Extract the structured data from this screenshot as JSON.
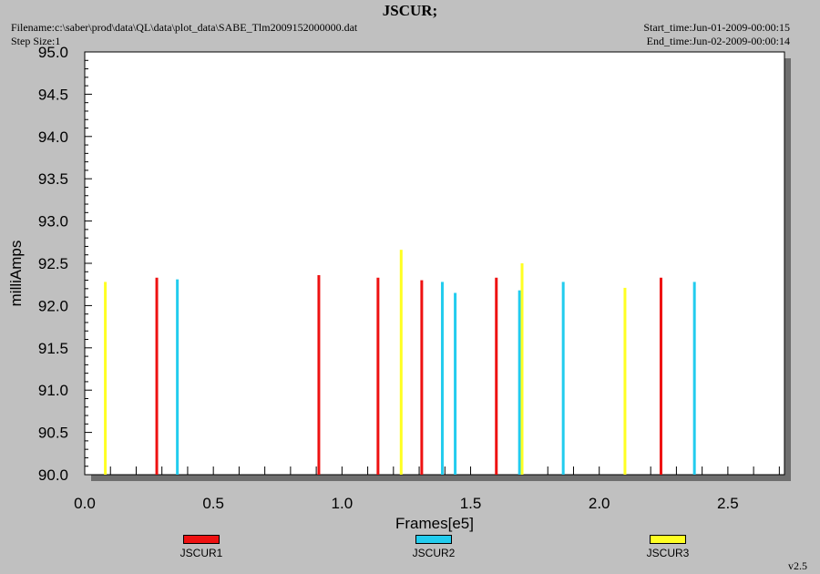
{
  "header": {
    "title": "JSCUR;",
    "filename": "Filename:c:\\saber\\prod\\data\\QL\\data\\plot_data\\SABE_Tlm2009152000000.dat",
    "step_size": "Step Size:1",
    "start_time": "Start_time:Jun-01-2009-00:00:15",
    "end_time": "End_time:Jun-02-2009-00:00:14"
  },
  "version": "v2.5",
  "colors": {
    "background": "#c0c0c0",
    "plot_area": "#ffffff",
    "shadow": "#6e6e6e",
    "JSCUR1": "#ee1111",
    "JSCUR2": "#22ccee",
    "JSCUR3": "#ffff22"
  },
  "chart_data": {
    "type": "bar",
    "xlabel": "Frames[e5]",
    "ylabel": "milliAmps",
    "xlim": [
      0.0,
      2.72
    ],
    "ylim": [
      90.0,
      95.0
    ],
    "x_ticks": [
      "0.0",
      "0.5",
      "1.0",
      "1.5",
      "2.0",
      "2.5"
    ],
    "y_ticks": [
      "90.0",
      "90.5",
      "91.0",
      "91.5",
      "92.0",
      "92.5",
      "93.0",
      "93.5",
      "94.0",
      "94.5",
      "95.0"
    ],
    "grid": false,
    "legend_position": "bottom",
    "series": [
      {
        "name": "JSCUR1",
        "x": [
          0.28,
          0.91,
          1.14,
          1.31,
          1.6,
          2.24
        ],
        "y": [
          92.33,
          92.36,
          92.33,
          92.3,
          92.33,
          92.33
        ]
      },
      {
        "name": "JSCUR2",
        "x": [
          0.36,
          1.39,
          1.44,
          1.69,
          1.86,
          2.37
        ],
        "y": [
          92.31,
          92.28,
          92.15,
          92.18,
          92.28,
          92.28
        ]
      },
      {
        "name": "JSCUR3",
        "x": [
          0.08,
          1.23,
          1.7,
          2.1
        ],
        "y": [
          92.28,
          92.66,
          92.5,
          92.21
        ]
      }
    ]
  }
}
